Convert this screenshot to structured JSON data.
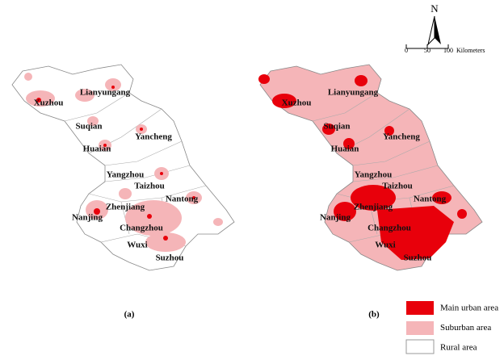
{
  "maps": [
    {
      "label": "(a)",
      "cities": [
        "Lianyungang",
        "Xuzhou",
        "Suqian",
        "Huaian",
        "Yancheng",
        "Yangzhou",
        "Taizhou",
        "Nantong",
        "Zhenjiang",
        "Nanjing",
        "Changzhou",
        "Wuxi",
        "Suzhou"
      ]
    },
    {
      "label": "(b)",
      "cities": [
        "Lianyungang",
        "Xuzhou",
        "Suqian",
        "Huaian",
        "Yancheng",
        "Yangzhou",
        "Taizhou",
        "Nantong",
        "Zhenjiang",
        "Nanjing",
        "Changzhou",
        "Wuxi",
        "Suzhou"
      ]
    }
  ],
  "north_arrow": "N",
  "scale_bar": {
    "ticks": [
      "0",
      "50",
      "100"
    ],
    "unit": "Kilometers"
  },
  "legend": [
    "Main urban area",
    "Suburban area",
    "Rural area"
  ]
}
